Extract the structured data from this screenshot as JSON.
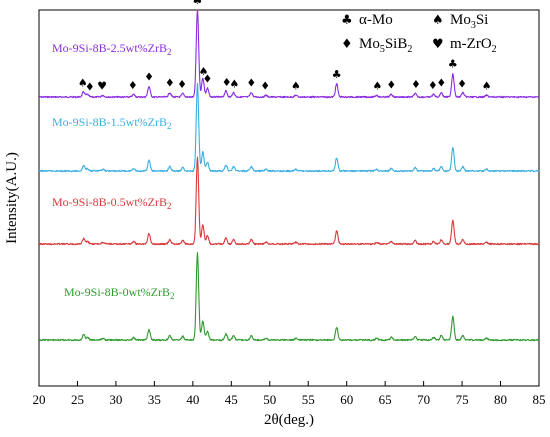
{
  "chart_data": {
    "type": "line",
    "title": "",
    "xlabel": "2θ(deg.)",
    "ylabel": "Intensity(A.U.)",
    "xlim": [
      20,
      85
    ],
    "x_ticks": [
      "20",
      "25",
      "30",
      "35",
      "40",
      "45",
      "50",
      "55",
      "60",
      "65",
      "70",
      "75",
      "80",
      "85"
    ],
    "grid": false,
    "legend": {
      "placement": "top-right",
      "entries": [
        {
          "symbol": "♣",
          "symbol_name": "club-icon",
          "label": "α-Mo",
          "sub": ""
        },
        {
          "symbol": "♠",
          "symbol_name": "spade-icon",
          "label": "Mo",
          "sub": "3",
          "tail": "Si"
        },
        {
          "symbol": "♦",
          "symbol_name": "diamond-icon",
          "label": "Mo",
          "sub": "5",
          "tail": "SiB",
          "sub2": "2"
        },
        {
          "symbol": "♥",
          "symbol_name": "heart-icon",
          "label": "m-ZrO",
          "sub": "2",
          "tail": ""
        }
      ]
    },
    "series": [
      {
        "name": "Mo-9Si-8B-2.5wt%ZrB",
        "sub": "2",
        "color": "#8b2be2",
        "level": 4
      },
      {
        "name": "Mo-9Si-8B-1.5wt%ZrB",
        "sub": "2",
        "color": "#3aaee0",
        "level": 3
      },
      {
        "name": "Mo-9Si-8B-0.5wt%ZrB",
        "sub": "2",
        "color": "#d9383a",
        "level": 2
      },
      {
        "name": "Mo-9Si-8B-0wt%ZrB",
        "sub": "2",
        "color": "#2e9a2e",
        "level": 1
      }
    ],
    "peaks": [
      {
        "x": 25.8,
        "h": 0.06
      },
      {
        "x": 26.3,
        "h": 0.03
      },
      {
        "x": 28.3,
        "h": 0.02
      },
      {
        "x": 32.3,
        "h": 0.03
      },
      {
        "x": 34.3,
        "h": 0.12
      },
      {
        "x": 37.0,
        "h": 0.05
      },
      {
        "x": 38.7,
        "h": 0.04
      },
      {
        "x": 40.6,
        "h": 1.0
      },
      {
        "x": 41.3,
        "h": 0.22
      },
      {
        "x": 41.9,
        "h": 0.1
      },
      {
        "x": 44.3,
        "h": 0.07
      },
      {
        "x": 45.3,
        "h": 0.05
      },
      {
        "x": 47.6,
        "h": 0.05
      },
      {
        "x": 49.5,
        "h": 0.02
      },
      {
        "x": 53.4,
        "h": 0.02
      },
      {
        "x": 58.7,
        "h": 0.15
      },
      {
        "x": 63.9,
        "h": 0.02
      },
      {
        "x": 65.8,
        "h": 0.03
      },
      {
        "x": 68.9,
        "h": 0.04
      },
      {
        "x": 71.3,
        "h": 0.03
      },
      {
        "x": 72.3,
        "h": 0.05
      },
      {
        "x": 73.8,
        "h": 0.27
      },
      {
        "x": 75.1,
        "h": 0.05
      },
      {
        "x": 78.2,
        "h": 0.02
      }
    ],
    "phase_markers": [
      {
        "x": 25.7,
        "symbol": "♠"
      },
      {
        "x": 26.6,
        "symbol": "♦"
      },
      {
        "x": 28.2,
        "symbol": "♥"
      },
      {
        "x": 32.2,
        "symbol": "♦"
      },
      {
        "x": 34.3,
        "symbol": "♦"
      },
      {
        "x": 37.0,
        "symbol": "♦"
      },
      {
        "x": 38.6,
        "symbol": "♦"
      },
      {
        "x": 40.6,
        "symbol": "♣"
      },
      {
        "x": 41.4,
        "symbol": "♠"
      },
      {
        "x": 41.9,
        "symbol": "♦"
      },
      {
        "x": 44.4,
        "symbol": "♦"
      },
      {
        "x": 45.4,
        "symbol": "♠"
      },
      {
        "x": 47.6,
        "symbol": "♦"
      },
      {
        "x": 49.4,
        "symbol": "♦"
      },
      {
        "x": 53.4,
        "symbol": "♠"
      },
      {
        "x": 58.7,
        "symbol": "♣"
      },
      {
        "x": 64.0,
        "symbol": "♠"
      },
      {
        "x": 65.8,
        "symbol": "♦"
      },
      {
        "x": 69.0,
        "symbol": "♦"
      },
      {
        "x": 71.2,
        "symbol": "♦"
      },
      {
        "x": 72.3,
        "symbol": "♦"
      },
      {
        "x": 73.8,
        "symbol": "♣"
      },
      {
        "x": 75.0,
        "symbol": "♦"
      },
      {
        "x": 78.2,
        "symbol": "♠"
      }
    ]
  }
}
